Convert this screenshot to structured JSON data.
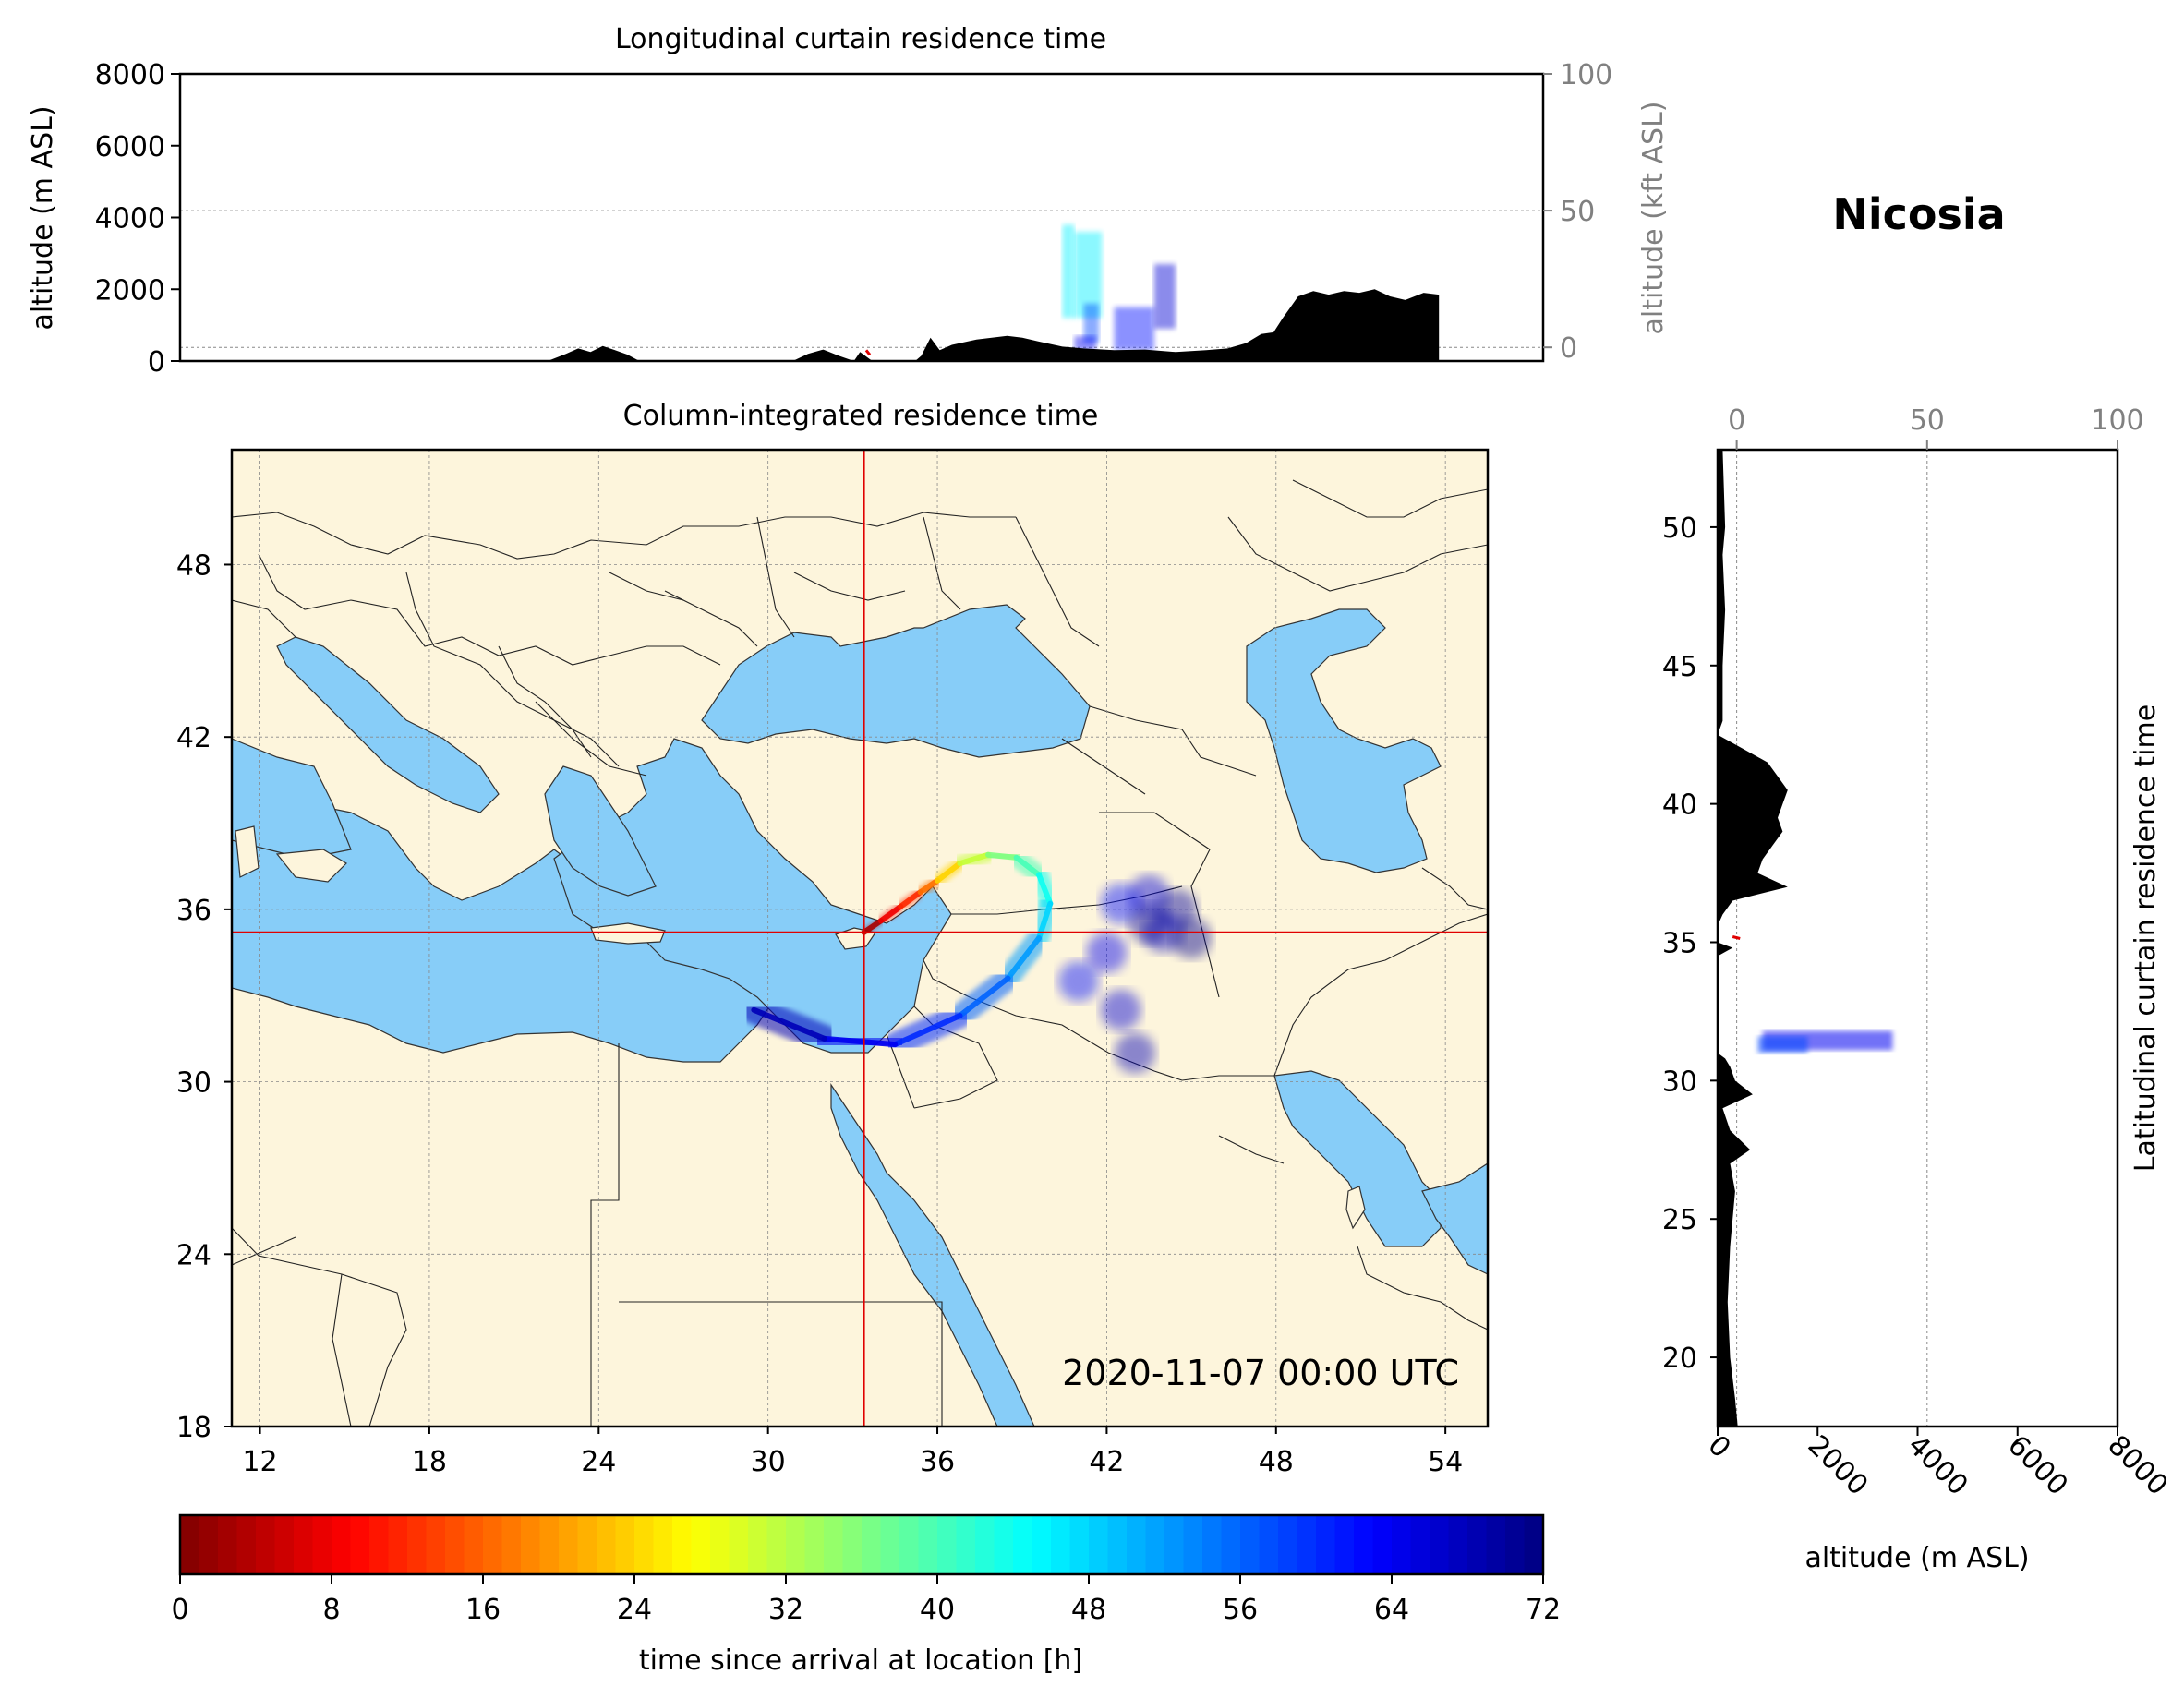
{
  "chart_data": [
    {
      "id": "longitudinal_curtain",
      "type": "area",
      "title": "Longitudinal curtain residence time",
      "ylabel": "altitude (m ASL)",
      "ylabel_right": "altitude (kft ASL)",
      "ylim": [
        0,
        8000
      ],
      "yticks": [
        "0",
        "2000",
        "4000",
        "6000",
        "8000"
      ],
      "ylim_right": [
        -5,
        100
      ],
      "yticks_right": [
        "0",
        "50",
        "100"
      ],
      "xlim": [
        11,
        55.5
      ],
      "xticks": [],
      "grid": true,
      "terrain": {
        "x": [
          11,
          23.0,
          23.6,
          24.0,
          24.4,
          24.8,
          25.2,
          25.6,
          26.0,
          31.0,
          31.5,
          32.0,
          32.5,
          33.0,
          33.2,
          33.6,
          35.0,
          35.2,
          35.5,
          35.8,
          36.2,
          37.0,
          38.0,
          38.5,
          39.0,
          39.8,
          40.5,
          41.5,
          42.5,
          43.5,
          44.5,
          45.2,
          45.8,
          46.3,
          46.7,
          47.0,
          47.5,
          48.0,
          48.5,
          49.0,
          49.5,
          50.0,
          50.5,
          51.0,
          51.6,
          52.1,
          52.1
        ],
        "y": [
          0,
          0,
          200,
          350,
          250,
          420,
          300,
          180,
          0,
          0,
          200,
          320,
          150,
          0,
          250,
          0,
          0,
          150,
          650,
          300,
          450,
          600,
          700,
          650,
          550,
          400,
          350,
          300,
          320,
          250,
          300,
          350,
          500,
          750,
          800,
          1200,
          1800,
          1950,
          1850,
          1950,
          1900,
          2000,
          1800,
          1700,
          1900,
          1850,
          0
        ]
      },
      "residence_blobs": [
        {
          "lon_range": [
            39.8,
            40.2
          ],
          "alt_range": [
            1200,
            3800
          ],
          "time_h": 46
        },
        {
          "lon_range": [
            40.2,
            41.1
          ],
          "alt_range": [
            1200,
            3600
          ],
          "time_h": 46
        },
        {
          "lon_range": [
            40.5,
            41.0
          ],
          "alt_range": [
            500,
            1600
          ],
          "time_h": 58
        },
        {
          "lon_range": [
            40.2,
            40.9
          ],
          "alt_range": [
            300,
            700
          ],
          "time_h": 64
        },
        {
          "lon_range": [
            41.5,
            42.8
          ],
          "alt_range": [
            300,
            1500
          ],
          "time_h": 62
        },
        {
          "lon_range": [
            42.8,
            43.5
          ],
          "alt_range": [
            900,
            2700
          ],
          "time_h": 66
        }
      ],
      "reference_altitude_m": 400
    },
    {
      "id": "column_integrated",
      "type": "map",
      "title": "Column-integrated residence time",
      "xlim": [
        11,
        55.5
      ],
      "ylim": [
        18,
        52
      ],
      "xticks": [
        "12",
        "18",
        "24",
        "30",
        "36",
        "42",
        "48",
        "54"
      ],
      "yticks": [
        "18",
        "24",
        "30",
        "36",
        "42",
        "48"
      ],
      "grid": true,
      "location_marker": {
        "lon": 33.4,
        "lat": 35.2
      },
      "timestamp": "2020-11-07 00:00 UTC",
      "trajectory_points": [
        {
          "lon": 33.4,
          "lat": 35.2,
          "time_h": 0
        },
        {
          "lon": 34.0,
          "lat": 35.6,
          "time_h": 6
        },
        {
          "lon": 34.7,
          "lat": 36.1,
          "time_h": 10
        },
        {
          "lon": 35.4,
          "lat": 36.6,
          "time_h": 14
        },
        {
          "lon": 36.0,
          "lat": 37.0,
          "time_h": 20
        },
        {
          "lon": 36.8,
          "lat": 37.6,
          "time_h": 28
        },
        {
          "lon": 37.8,
          "lat": 37.9,
          "time_h": 34
        },
        {
          "lon": 38.8,
          "lat": 37.8,
          "time_h": 38
        },
        {
          "lon": 39.6,
          "lat": 37.2,
          "time_h": 42
        },
        {
          "lon": 40.0,
          "lat": 36.2,
          "time_h": 46
        },
        {
          "lon": 39.6,
          "lat": 35.0,
          "time_h": 50
        },
        {
          "lon": 38.5,
          "lat": 33.6,
          "time_h": 54
        },
        {
          "lon": 36.8,
          "lat": 32.3,
          "time_h": 58
        },
        {
          "lon": 34.5,
          "lat": 31.3,
          "time_h": 62
        },
        {
          "lon": 32.0,
          "lat": 31.5,
          "time_h": 66
        },
        {
          "lon": 29.5,
          "lat": 32.5,
          "time_h": 70
        }
      ],
      "plume_points": [
        {
          "lon": 42.5,
          "lat": 36.2,
          "time_h": 62
        },
        {
          "lon": 43.5,
          "lat": 36.5,
          "time_h": 66
        },
        {
          "lon": 44.5,
          "lat": 36.0,
          "time_h": 70
        },
        {
          "lon": 44.0,
          "lat": 35.2,
          "time_h": 68
        },
        {
          "lon": 42.0,
          "lat": 34.5,
          "time_h": 64
        },
        {
          "lon": 41.0,
          "lat": 33.5,
          "time_h": 62
        },
        {
          "lon": 42.5,
          "lat": 32.5,
          "time_h": 66
        },
        {
          "lon": 43.0,
          "lat": 31.0,
          "time_h": 68
        },
        {
          "lon": 43.5,
          "lat": 35.5,
          "time_h": 70
        },
        {
          "lon": 45.0,
          "lat": 35.0,
          "time_h": 71
        }
      ]
    },
    {
      "id": "latitudinal_curtain",
      "type": "area",
      "ylabel": "Latitudinal curtain residence time",
      "xlabel": "altitude (m ASL)",
      "xlim": [
        0,
        8000
      ],
      "xticks": [
        "0",
        "2000",
        "4000",
        "6000",
        "8000"
      ],
      "xlim_top": [
        -5,
        100
      ],
      "xticks_top": [
        "0",
        "50",
        "100"
      ],
      "ylim": [
        17.5,
        52.8
      ],
      "yticks": [
        "20",
        "25",
        "30",
        "35",
        "40",
        "45",
        "50"
      ],
      "grid": true,
      "terrain": {
        "lat": [
          17.5,
          18.5,
          20,
          22,
          24,
          25,
          26,
          27,
          27.5,
          28.2,
          29,
          29.5,
          30,
          30.5,
          30.8,
          31,
          34.5,
          34.8,
          35,
          35.3,
          35.6,
          36,
          36.5,
          37,
          37.5,
          38,
          38.5,
          39,
          39.5,
          40,
          40.5,
          41,
          41.5,
          42,
          42.5,
          43,
          45,
          47,
          49,
          50,
          52.8
        ],
        "alt": [
          400,
          350,
          250,
          200,
          250,
          300,
          350,
          250,
          650,
          250,
          100,
          700,
          350,
          250,
          150,
          0,
          0,
          300,
          0,
          0,
          0,
          100,
          300,
          1400,
          800,
          900,
          1100,
          1300,
          1200,
          1300,
          1400,
          1200,
          1000,
          500,
          0,
          100,
          100,
          150,
          100,
          150,
          100
        ]
      },
      "residence_blobs": [
        {
          "lat_range": [
            31.1,
            31.8
          ],
          "alt_range": [
            900,
            3500
          ],
          "time_h": 64
        },
        {
          "lat_range": [
            31.0,
            31.6
          ],
          "alt_range": [
            800,
            1800
          ],
          "time_h": 58
        }
      ],
      "reference_altitude_m": 400
    }
  ],
  "colorbar": {
    "label": "time since arrival at location [h]",
    "ticks": [
      "0",
      "8",
      "16",
      "24",
      "32",
      "40",
      "48",
      "56",
      "64",
      "72"
    ],
    "range": [
      0,
      72
    ],
    "colormap": "jet_r",
    "levels": 72
  },
  "location_title": "Nicosia",
  "colors": {
    "land": "#fdf5dc",
    "sea": "#87cdf8",
    "marker": "#e00000",
    "terrain": "#000000",
    "border": "#222222",
    "grid": "#888888"
  }
}
